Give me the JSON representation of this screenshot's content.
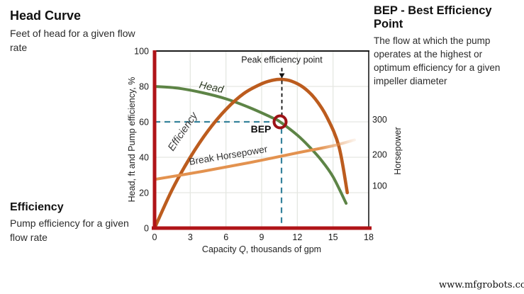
{
  "annotations": {
    "head_curve": {
      "title": "Head Curve",
      "desc": "Feet of head for a given flow rate"
    },
    "bep_note": {
      "title": "BEP - Best Efficiency Point",
      "desc": "The flow at which the pump operates at the highest or optimum efficiency for a given impeller diameter"
    },
    "efficiency_note": {
      "title": "Efficiency",
      "desc": "Pump efficiency for a given flow rate"
    }
  },
  "watermark": "www.mfgrobots.com",
  "chart_data": {
    "type": "line",
    "title": "",
    "xlabel": "Capacity Q, thousands of gpm",
    "xlabel_parts": {
      "prefix": "Capacity ",
      "q": "Q",
      "suffix": ", thousands of gpm"
    },
    "ylabel_left": "Head, ft and Pump efficiency, %",
    "ylabel_right": "Horsepower",
    "xlim": [
      0,
      18
    ],
    "ylim_left": [
      0,
      100
    ],
    "x_ticks": [
      0,
      3,
      6,
      9,
      12,
      15,
      18
    ],
    "y_ticks_left": [
      0,
      20,
      40,
      60,
      80,
      100
    ],
    "y_ticks_right": [
      {
        "label": "100",
        "at_left_value": 24
      },
      {
        "label": "200",
        "at_left_value": 41.6
      },
      {
        "label": "300",
        "at_left_value": 61.4
      }
    ],
    "x_gridlines": [
      3,
      6,
      9,
      12,
      15
    ],
    "y_gridlines": [
      20,
      40,
      60,
      80
    ],
    "grid_on": true,
    "legend": "labels drawn along curves",
    "colors": {
      "axis_red": "#b01418",
      "grid": "#e5e7e2",
      "guide_teal": "#35829b",
      "bep_ring": "#9c1216",
      "frame_black": "#1a1a1a"
    },
    "series": [
      {
        "name": "Head",
        "color": "#5d8446",
        "width": 4,
        "points": [
          [
            0,
            80
          ],
          [
            2,
            79
          ],
          [
            4,
            76.5
          ],
          [
            6,
            73
          ],
          [
            8,
            68
          ],
          [
            10,
            62
          ],
          [
            10.55,
            60
          ],
          [
            12,
            52.5
          ],
          [
            13,
            46
          ],
          [
            14,
            38.5
          ],
          [
            15,
            29
          ],
          [
            16.1,
            14
          ]
        ],
        "label": {
          "text": "Head",
          "x": 3.7,
          "y": 79.2,
          "rotate": 12,
          "italic": true,
          "size": 14.5,
          "color": "#2e3b24"
        }
      },
      {
        "name": "Efficiency",
        "color": "#bc5c1e",
        "width": 4.6,
        "points": [
          [
            0,
            0
          ],
          [
            1.5,
            22
          ],
          [
            3,
            40
          ],
          [
            4.5,
            55
          ],
          [
            6,
            67
          ],
          [
            7.5,
            76
          ],
          [
            9,
            81.5
          ],
          [
            10,
            83.6
          ],
          [
            10.7,
            84
          ],
          [
            11.5,
            83
          ],
          [
            12.5,
            79.5
          ],
          [
            13.5,
            73
          ],
          [
            14.5,
            62.5
          ],
          [
            15.5,
            46
          ],
          [
            16.2,
            20
          ]
        ],
        "label": {
          "text": "Efficiency",
          "x": 1.55,
          "y": 43.2,
          "rotate": -56,
          "italic": true,
          "size": 14.5,
          "color": "#3a3a3a"
        }
      },
      {
        "name": "Break Horsepower",
        "color": "#e3924f",
        "width": 4,
        "fade_end": true,
        "points": [
          [
            0,
            27.5
          ],
          [
            4,
            32
          ],
          [
            8,
            37
          ],
          [
            12,
            42.5
          ],
          [
            15,
            46.5
          ],
          [
            16.8,
            49.8
          ]
        ],
        "label": {
          "text": "Break Horsepower",
          "x": 2.95,
          "y": 35.6,
          "rotate": -9.5,
          "italic": false,
          "size": 13.5,
          "color": "#333333"
        }
      }
    ],
    "bep_marker": {
      "x": 10.55,
      "y": 60,
      "label": "BEP",
      "ring_radius": 8.5,
      "ring_stroke": 4,
      "label_dx": -27,
      "label_dy": 15,
      "label_size": 14
    },
    "guides": {
      "horizontal": {
        "y": 60,
        "x_from": 0,
        "x_to": 10.05
      },
      "vertical": {
        "x": 10.67,
        "y_from": 0,
        "y_to": 56.5
      },
      "dash": "8 6",
      "width": 2.2
    },
    "peak_annotation": {
      "text": "Peak efficiency point",
      "x": 10.7,
      "text_y": 93.5,
      "dash_top_y": 90.5,
      "dash_bottom_y": 63.5,
      "arrowhead_tip_y": 84.6,
      "size": 12.5
    }
  }
}
